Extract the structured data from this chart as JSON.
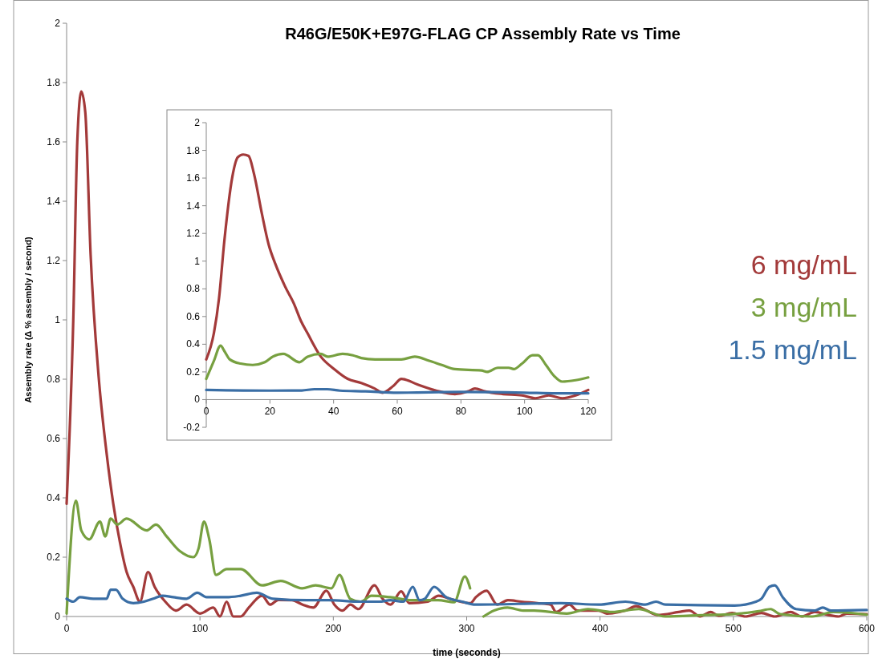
{
  "chart_data": [
    {
      "type": "line",
      "title": "R46G/E50K+E97G-FLAG CP Assembly Rate vs Time",
      "xlabel": "time (seconds)",
      "ylabel": "Assembly rate (Δ % assembly / second)",
      "xlim": [
        0,
        600
      ],
      "xticks": [
        0,
        100,
        200,
        300,
        400,
        500,
        600
      ],
      "ylim": [
        0,
        2
      ],
      "yticks": [
        0,
        0.2,
        0.4,
        0.6,
        0.8,
        1,
        1.2,
        1.4,
        1.6,
        1.8,
        2
      ],
      "legend": "right",
      "line_style": "solid",
      "marker": "none",
      "series": [
        {
          "name": "6 mg/mL",
          "color": "#a33a3a",
          "x": [
            0,
            5,
            8,
            11,
            14,
            18,
            24,
            30,
            35,
            40,
            45,
            50,
            55,
            61,
            66,
            74,
            82,
            90,
            100,
            110,
            115,
            120,
            125,
            130.6,
            136.6,
            146.6,
            152.6,
            158.7,
            169,
            177,
            185,
            194.8,
            200.8,
            206.8,
            212.8,
            218.8,
            230.9,
            236.9,
            242.9,
            250.9,
            256.9,
            270.9,
            278.9,
            290.9,
            302.9,
            306.9,
            314.9,
            322.9,
            330.9,
            340.9,
            352.9,
            363,
            367,
            377,
            383,
            399,
            405,
            419,
            427,
            435,
            443,
            459,
            467,
            475,
            483,
            489,
            499,
            509,
            521,
            531,
            543,
            551,
            561,
            571,
            579,
            585,
            600
          ],
          "values": [
            0.38,
            1.0,
            1.6,
            1.77,
            1.7,
            1.22,
            0.81,
            0.55,
            0.38,
            0.25,
            0.15,
            0.1,
            0.05,
            0.15,
            0.1,
            0.05,
            0.02,
            0.04,
            0.01,
            0.03,
            0.0,
            0.05,
            0.0,
            0.0,
            0.03,
            0.07,
            0.04,
            0.056,
            0.055,
            0.04,
            0.03,
            0.087,
            0.04,
            0.02,
            0.04,
            0.025,
            0.105,
            0.06,
            0.04,
            0.085,
            0.045,
            0.05,
            0.07,
            0.055,
            0.045,
            0.065,
            0.087,
            0.04,
            0.055,
            0.05,
            0.045,
            0.04,
            0.015,
            0.04,
            0.02,
            0.02,
            0.01,
            0.02,
            0.035,
            0.02,
            0.005,
            0.015,
            0.02,
            0.0,
            0.015,
            0.002,
            0.012,
            0.0,
            0.012,
            0.0,
            0.015,
            0.0,
            0.015,
            0.005,
            0.0,
            0.01,
            0.008
          ]
        },
        {
          "name": "3 mg/mL",
          "color": "#77a040",
          "x": [
            0,
            7,
            11,
            17,
            25,
            29,
            33,
            38,
            45,
            60,
            67,
            75,
            85,
            95,
            99,
            103,
            107,
            112,
            120,
            130.6,
            146.6,
            160.6,
            176.6,
            186.6,
            198.6,
            204.6,
            212.6,
            220.6,
            228.6,
            242.6,
            258.6,
            278.6,
            290.6,
            298.6,
            302.6,
            308,
            312.6,
            320.6,
            330.6,
            342.6,
            350.6,
            375,
            391,
            409,
            429,
            449,
            479,
            499,
            519,
            528,
            535,
            559,
            575,
            600
          ],
          "values": [
            0.01,
            0.39,
            0.29,
            0.26,
            0.32,
            0.27,
            0.33,
            0.31,
            0.33,
            0.29,
            0.31,
            0.27,
            0.22,
            0.2,
            0.23,
            0.32,
            0.26,
            0.14,
            0.16,
            0.16,
            0.105,
            0.12,
            0.095,
            0.105,
            0.095,
            0.14,
            0.06,
            0.05,
            0.07,
            0.065,
            0.055,
            0.055,
            0.048,
            0.135,
            0.095,
            null,
            0.0,
            0.02,
            0.03,
            0.02,
            0.02,
            0.01,
            0.025,
            0.015,
            0.025,
            0.0,
            0.005,
            0.008,
            0.018,
            0.025,
            0.008,
            0.0,
            0.015,
            0.006
          ]
        },
        {
          "name": "1.5 mg/mL",
          "color": "#3a6ea5",
          "x": [
            0,
            5,
            10,
            20,
            30,
            33,
            37,
            42,
            50,
            58,
            65,
            72,
            80,
            90,
            98,
            105,
            120,
            130.6,
            142.6,
            154.6,
            180.6,
            196.6,
            220.6,
            234.6,
            242.6,
            252.6,
            259.6,
            264.6,
            268.6,
            275.6,
            284.6,
            296.6,
            306.6,
            370.6,
            399,
            419,
            434,
            442,
            449,
            501,
            517,
            521,
            527,
            531,
            537,
            547,
            561,
            567,
            573,
            600
          ],
          "values": [
            0.06,
            0.05,
            0.065,
            0.06,
            0.06,
            0.09,
            0.09,
            0.06,
            0.045,
            0.05,
            0.06,
            0.07,
            0.065,
            0.06,
            0.08,
            0.065,
            0.065,
            0.07,
            0.08,
            0.06,
            0.055,
            0.055,
            0.05,
            0.05,
            0.055,
            0.05,
            0.1,
            0.055,
            0.06,
            0.1,
            0.065,
            0.05,
            0.04,
            0.045,
            0.04,
            0.05,
            0.04,
            0.05,
            0.04,
            0.037,
            0.05,
            0.06,
            0.1,
            0.105,
            0.065,
            0.025,
            0.02,
            0.03,
            0.02,
            0.022
          ]
        }
      ]
    },
    {
      "type": "line",
      "xlim": [
        0,
        120
      ],
      "xticks": [
        0,
        20,
        40,
        60,
        80,
        100,
        120
      ],
      "ylim": [
        -0.2,
        2
      ],
      "yticks": [
        -0.2,
        0,
        0.2,
        0.4,
        0.6,
        0.8,
        1,
        1.2,
        1.4,
        1.6,
        1.8,
        2
      ],
      "line_style": "solid",
      "marker": "none",
      "series": [
        {
          "color": "#a33a3a",
          "x": [
            0,
            2.4,
            4,
            5.7,
            8.2,
            9.9,
            11.6,
            13.3,
            15,
            17.5,
            19.6,
            21.7,
            24.7,
            27.6,
            29.7,
            31.8,
            36,
            40.2,
            44.4,
            48.7,
            52.9,
            55.4,
            58.8,
            61.3,
            66.3,
            71.4,
            74.8,
            78.1,
            82.3,
            84.4,
            87.4,
            93.3,
            99.2,
            103.4,
            107.6,
            111.8,
            116,
            120
          ],
          "values": [
            0.29,
            0.48,
            0.73,
            1.15,
            1.61,
            1.75,
            1.77,
            1.76,
            1.63,
            1.34,
            1.12,
            0.98,
            0.82,
            0.69,
            0.57,
            0.48,
            0.31,
            0.22,
            0.15,
            0.12,
            0.08,
            0.05,
            0.1,
            0.15,
            0.11,
            0.07,
            0.05,
            0.04,
            0.06,
            0.08,
            0.06,
            0.04,
            0.03,
            0.01,
            0.03,
            0.01,
            0.03,
            0.07
          ]
        },
        {
          "color": "#77a040",
          "x": [
            0,
            2.4,
            4.5,
            5.7,
            7.4,
            10.8,
            14.6,
            18.4,
            20.9,
            24.2,
            29.3,
            31.8,
            36,
            38.1,
            42.8,
            46.1,
            48.7,
            53,
            61.3,
            65.5,
            70,
            74,
            78.1,
            86.5,
            88.2,
            91.6,
            95,
            96.6,
            99.2,
            102.5,
            104.2,
            106.7,
            109.3,
            111.8,
            116,
            120
          ],
          "values": [
            0.15,
            0.28,
            0.39,
            0.35,
            0.29,
            0.26,
            0.25,
            0.27,
            0.31,
            0.33,
            0.27,
            0.31,
            0.33,
            0.31,
            0.33,
            0.32,
            0.3,
            0.29,
            0.29,
            0.31,
            0.28,
            0.25,
            0.22,
            0.21,
            0.2,
            0.23,
            0.23,
            0.22,
            0.26,
            0.32,
            0.32,
            0.25,
            0.17,
            0.13,
            0.14,
            0.16
          ]
        },
        {
          "color": "#3a6ea5",
          "x": [
            0,
            20,
            30,
            34,
            38,
            42,
            50,
            60,
            80,
            100,
            110,
            120
          ],
          "values": [
            0.07,
            0.065,
            0.066,
            0.075,
            0.075,
            0.065,
            0.06,
            0.05,
            0.055,
            0.05,
            0.045,
            0.045
          ]
        }
      ]
    }
  ]
}
